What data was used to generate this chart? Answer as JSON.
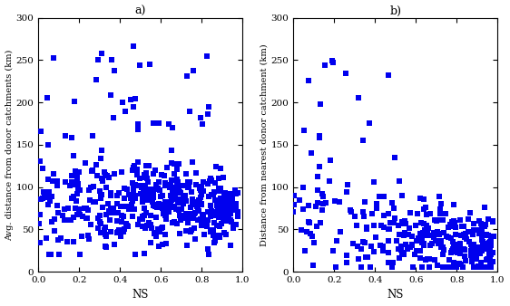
{
  "title_a": "a)",
  "title_b": "b)",
  "xlabel": "NS",
  "ylabel_a": "Avg. distance from donor catchments (km)",
  "ylabel_b": "Distance from nearest donor catchment (km)",
  "xlim": [
    0,
    1
  ],
  "ylim_a": [
    0,
    300
  ],
  "ylim_b": [
    0,
    300
  ],
  "xticks": [
    0,
    0.2,
    0.4,
    0.6,
    0.8,
    1
  ],
  "yticks": [
    0,
    50,
    100,
    150,
    200,
    250,
    300
  ],
  "marker_color": "#0000EE",
  "marker_size": 18,
  "n_points_a": 480,
  "n_points_b": 320,
  "seed_a": 7,
  "seed_b": 99
}
